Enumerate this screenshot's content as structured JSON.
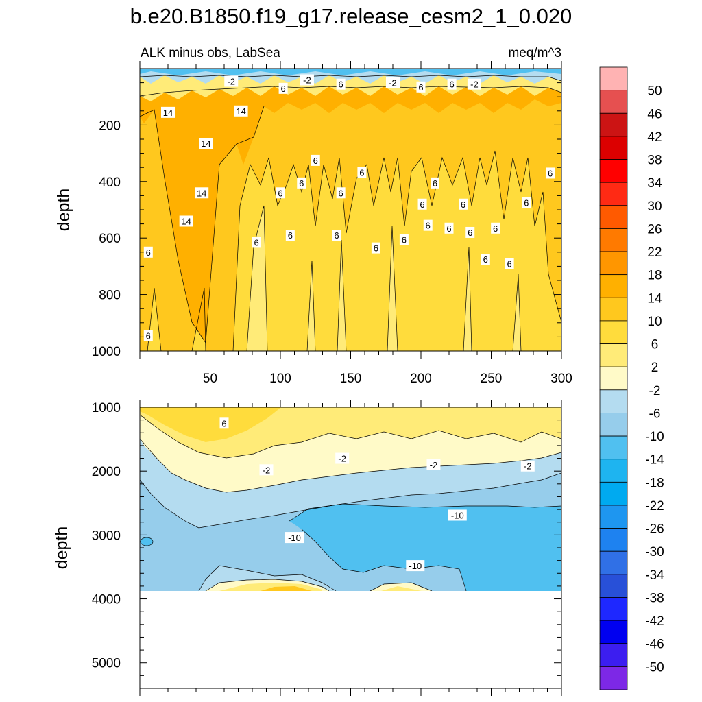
{
  "chart_data": {
    "type": "contour",
    "title": "b.e20.B1850.f19_g17.release_cesm2_1_0.020",
    "subtitle_left": "ALK minus obs, LabSea",
    "units": "meq/m^3",
    "colorbar": {
      "labels": [
        "50",
        "46",
        "42",
        "38",
        "34",
        "30",
        "26",
        "22",
        "18",
        "14",
        "10",
        "6",
        "2",
        "-2",
        "-6",
        "-10",
        "-14",
        "-18",
        "-22",
        "-26",
        "-30",
        "-34",
        "-38",
        "-42",
        "-46",
        "-50"
      ],
      "colors": [
        "#ffb3b3",
        "#e65050",
        "#cc1414",
        "#dc0000",
        "#ff0000",
        "#ff2a14",
        "#ff5a00",
        "#ff7a00",
        "#ff9600",
        "#ffb000",
        "#ffc81e",
        "#ffdc3c",
        "#ffeb78",
        "#fffac8",
        "#b4dcf0",
        "#96cdeb",
        "#50c0f0",
        "#1eb4f0",
        "#00aaf0",
        "#1e96f0",
        "#1e82f0",
        "#3070e6",
        "#2850d8",
        "#1e28ff",
        "#0000f0",
        "#3c1ef0",
        "#7d28e6"
      ]
    },
    "panels": [
      {
        "name": "upper",
        "ylabel": "depth",
        "ylim": [
          1000,
          0
        ],
        "xlim": [
          0,
          300
        ],
        "yticks": [
          "200",
          "400",
          "600",
          "800",
          "1000"
        ],
        "xticks": [
          "50",
          "100",
          "150",
          "200",
          "250",
          "300"
        ],
        "contour_labels": [
          {
            "text": "-2",
            "x": 65,
            "y": 45
          },
          {
            "text": "6",
            "x": 102,
            "y": 70
          },
          {
            "text": "-2",
            "x": 119,
            "y": 40
          },
          {
            "text": "6",
            "x": 143,
            "y": 55
          },
          {
            "text": "-2",
            "x": 180,
            "y": 50
          },
          {
            "text": "6",
            "x": 200,
            "y": 65
          },
          {
            "text": "6",
            "x": 222,
            "y": 55
          },
          {
            "text": "-2",
            "x": 238,
            "y": 55
          },
          {
            "text": "14",
            "x": 20,
            "y": 155
          },
          {
            "text": "14",
            "x": 72,
            "y": 150
          },
          {
            "text": "14",
            "x": 47,
            "y": 265
          },
          {
            "text": "6",
            "x": 125,
            "y": 325
          },
          {
            "text": "6",
            "x": 158,
            "y": 368
          },
          {
            "text": "6",
            "x": 115,
            "y": 405
          },
          {
            "text": "6",
            "x": 100,
            "y": 440
          },
          {
            "text": "6",
            "x": 143,
            "y": 440
          },
          {
            "text": "14",
            "x": 44,
            "y": 440
          },
          {
            "text": "6",
            "x": 210,
            "y": 405
          },
          {
            "text": "6",
            "x": 292,
            "y": 370
          },
          {
            "text": "6",
            "x": 201,
            "y": 480
          },
          {
            "text": "6",
            "x": 230,
            "y": 480
          },
          {
            "text": "6",
            "x": 275,
            "y": 475
          },
          {
            "text": "14",
            "x": 33,
            "y": 540
          },
          {
            "text": "6",
            "x": 107,
            "y": 590
          },
          {
            "text": "6",
            "x": 140,
            "y": 590
          },
          {
            "text": "6",
            "x": 205,
            "y": 555
          },
          {
            "text": "6",
            "x": 220,
            "y": 565
          },
          {
            "text": "6",
            "x": 235,
            "y": 580
          },
          {
            "text": "6",
            "x": 253,
            "y": 565
          },
          {
            "text": "6",
            "x": 188,
            "y": 605
          },
          {
            "text": "6",
            "x": 83,
            "y": 615
          },
          {
            "text": "6",
            "x": 168,
            "y": 635
          },
          {
            "text": "6",
            "x": 6,
            "y": 650
          },
          {
            "text": "6",
            "x": 246,
            "y": 675
          },
          {
            "text": "6",
            "x": 263,
            "y": 690
          },
          {
            "text": "6",
            "x": 6,
            "y": 945
          }
        ]
      },
      {
        "name": "lower",
        "ylabel": "depth",
        "ylim": [
          5400,
          1000
        ],
        "xlim": [
          0,
          300
        ],
        "yticks": [
          "1000",
          "2000",
          "3000",
          "4000",
          "5000"
        ],
        "contour_labels": [
          {
            "text": "6",
            "x": 60,
            "y": 1250
          },
          {
            "text": "-2",
            "x": 90,
            "y": 1980
          },
          {
            "text": "-2",
            "x": 144,
            "y": 1800
          },
          {
            "text": "-2",
            "x": 209,
            "y": 1900
          },
          {
            "text": "-2",
            "x": 276,
            "y": 1920
          },
          {
            "text": "-10",
            "x": 226,
            "y": 2690
          },
          {
            "text": "-10",
            "x": 110,
            "y": 3040
          },
          {
            "text": "-10",
            "x": 196,
            "y": 3480
          }
        ]
      }
    ]
  }
}
